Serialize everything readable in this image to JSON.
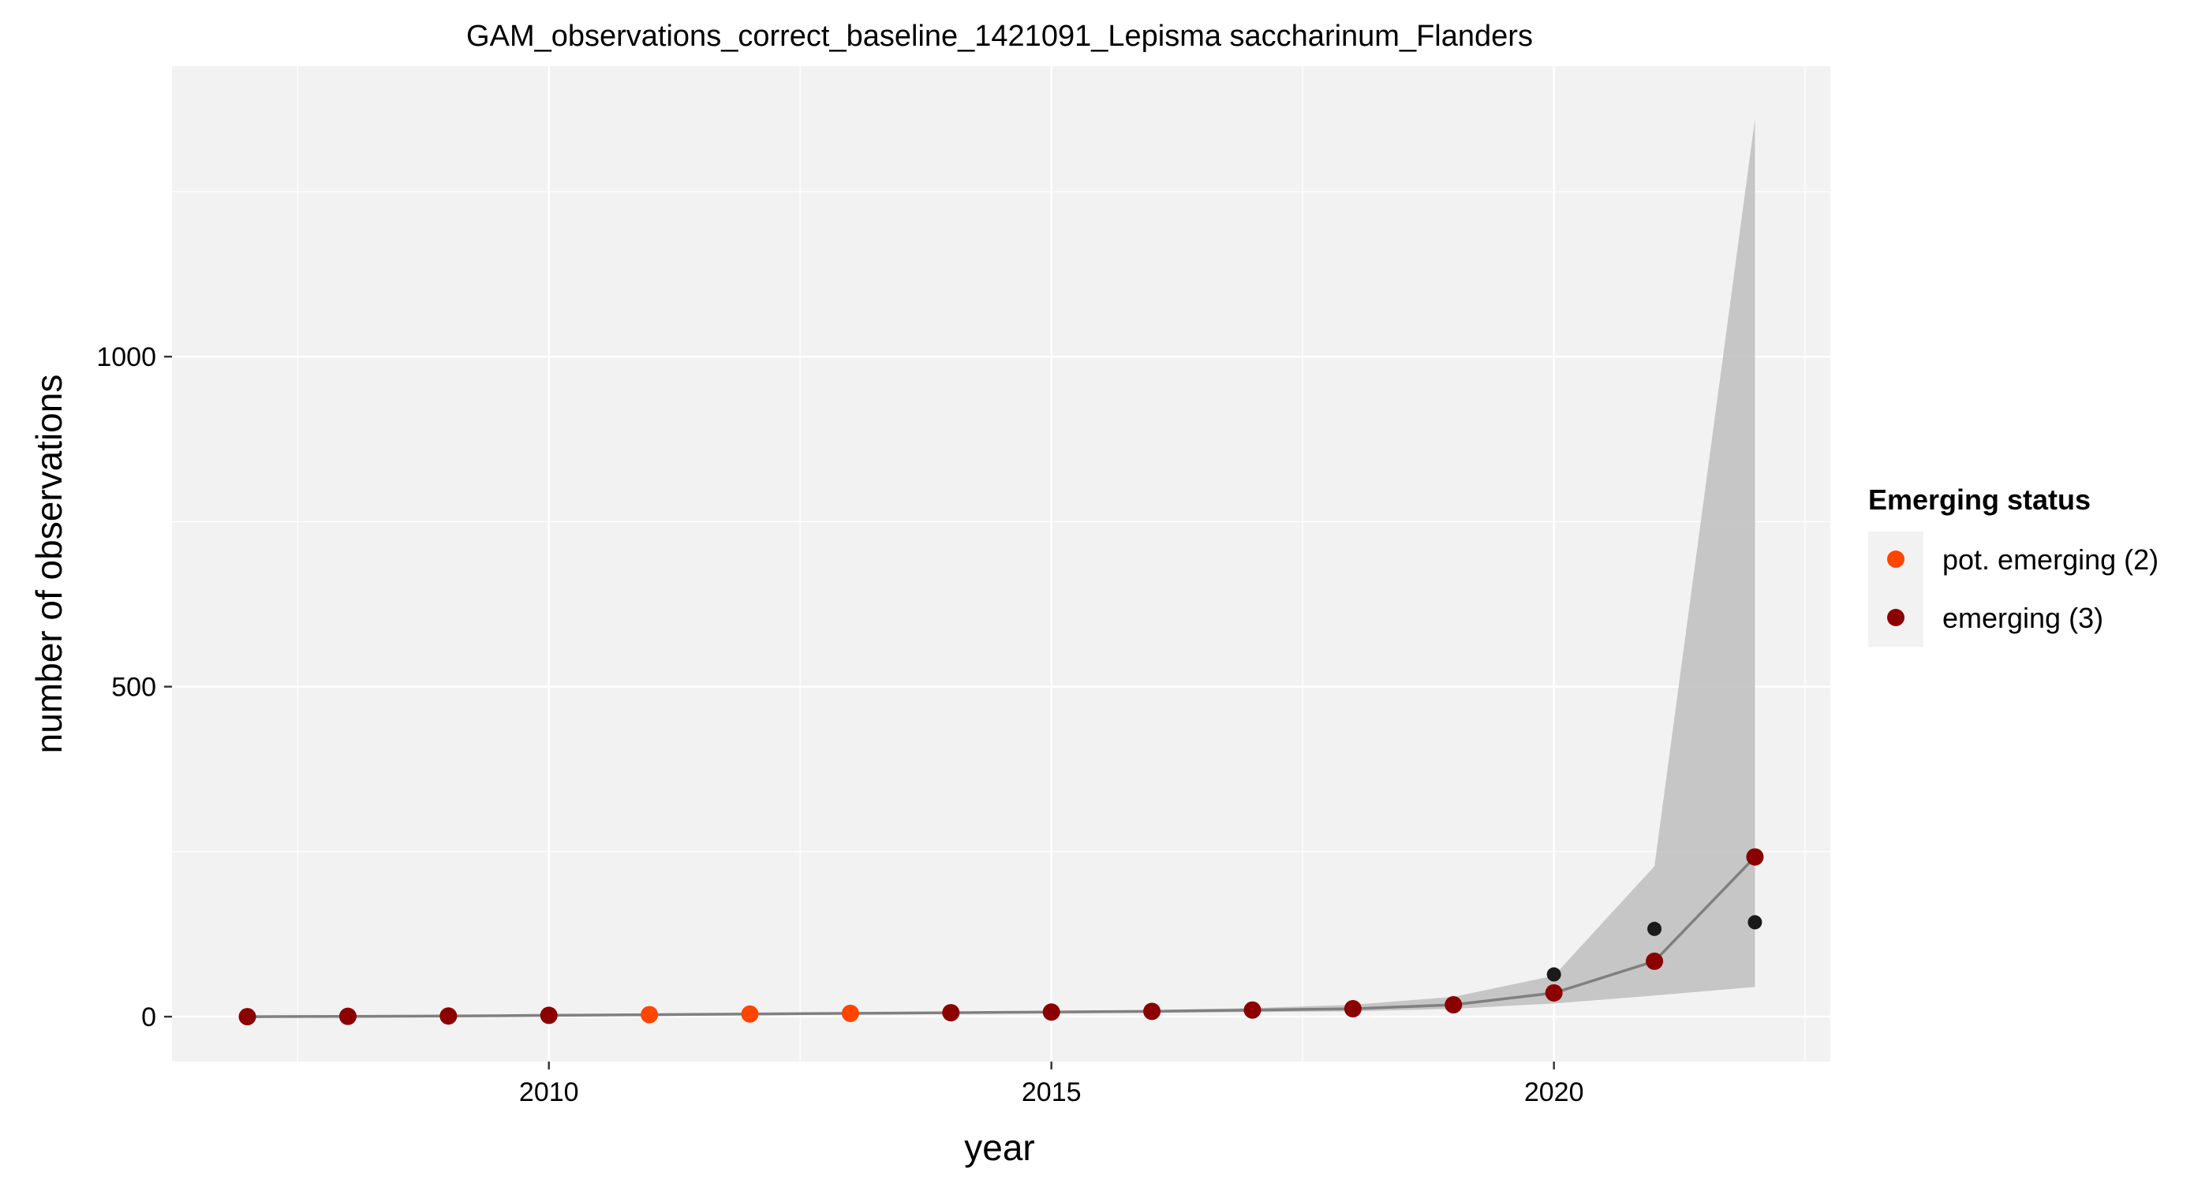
{
  "chart_data": {
    "type": "line",
    "title": "GAM_observations_correct_baseline_1421091_Lepisma saccharinum_Flanders",
    "xlabel": "year",
    "ylabel": "number of observations",
    "xlim": [
      2006.25,
      2022.75
    ],
    "ylim": [
      -68,
      1440
    ],
    "x_ticks": [
      2010,
      2015,
      2020
    ],
    "x_tick_labels": [
      "2010",
      "2015",
      "2020"
    ],
    "y_ticks": [
      0,
      500,
      1000
    ],
    "y_tick_labels": [
      "0",
      "500",
      "1000"
    ],
    "grid": true,
    "legend": {
      "title": "Emerging status",
      "placement": "right",
      "entries": [
        {
          "label": "pot. emerging (2)",
          "color": "#FF4500"
        },
        {
          "label": "emerging (3)",
          "color": "#8B0000"
        }
      ]
    },
    "fit": {
      "name": "GAM fit",
      "color": "#808080",
      "x": [
        2007,
        2008,
        2009,
        2010,
        2011,
        2012,
        2013,
        2014,
        2015,
        2016,
        2017,
        2018,
        2019,
        2020,
        2021,
        2022
      ],
      "y": [
        0,
        0.5,
        1,
        2,
        3,
        4,
        5,
        6,
        7,
        8,
        10,
        12,
        18,
        36,
        84,
        242
      ],
      "lower": [
        0,
        0,
        0,
        0,
        1,
        2,
        3,
        4,
        5,
        6,
        7,
        8,
        12,
        20,
        32,
        45
      ],
      "upper": [
        1,
        1,
        2,
        3,
        4,
        5,
        6,
        7,
        9,
        10,
        13,
        18,
        30,
        62,
        228,
        1360
      ]
    },
    "observed": {
      "color": "#1a1a1a",
      "x": [
        2020,
        2021,
        2022
      ],
      "y": [
        64,
        133,
        143
      ]
    },
    "points": {
      "x": [
        2007,
        2008,
        2009,
        2010,
        2011,
        2012,
        2013,
        2014,
        2015,
        2016,
        2017,
        2018,
        2019,
        2020,
        2021,
        2022
      ],
      "y": [
        0,
        0.5,
        1,
        2,
        3,
        4,
        5,
        6,
        7,
        8,
        10,
        12,
        18,
        36,
        84,
        242
      ],
      "status": [
        "emerging (3)",
        "emerging (3)",
        "emerging (3)",
        "emerging (3)",
        "pot. emerging (2)",
        "pot. emerging (2)",
        "pot. emerging (2)",
        "emerging (3)",
        "emerging (3)",
        "emerging (3)",
        "emerging (3)",
        "emerging (3)",
        "emerging (3)",
        "emerging (3)",
        "emerging (3)",
        "emerging (3)"
      ]
    },
    "panel_color": "#F2F2F2",
    "ribbon_color": "#BEBEBE"
  }
}
